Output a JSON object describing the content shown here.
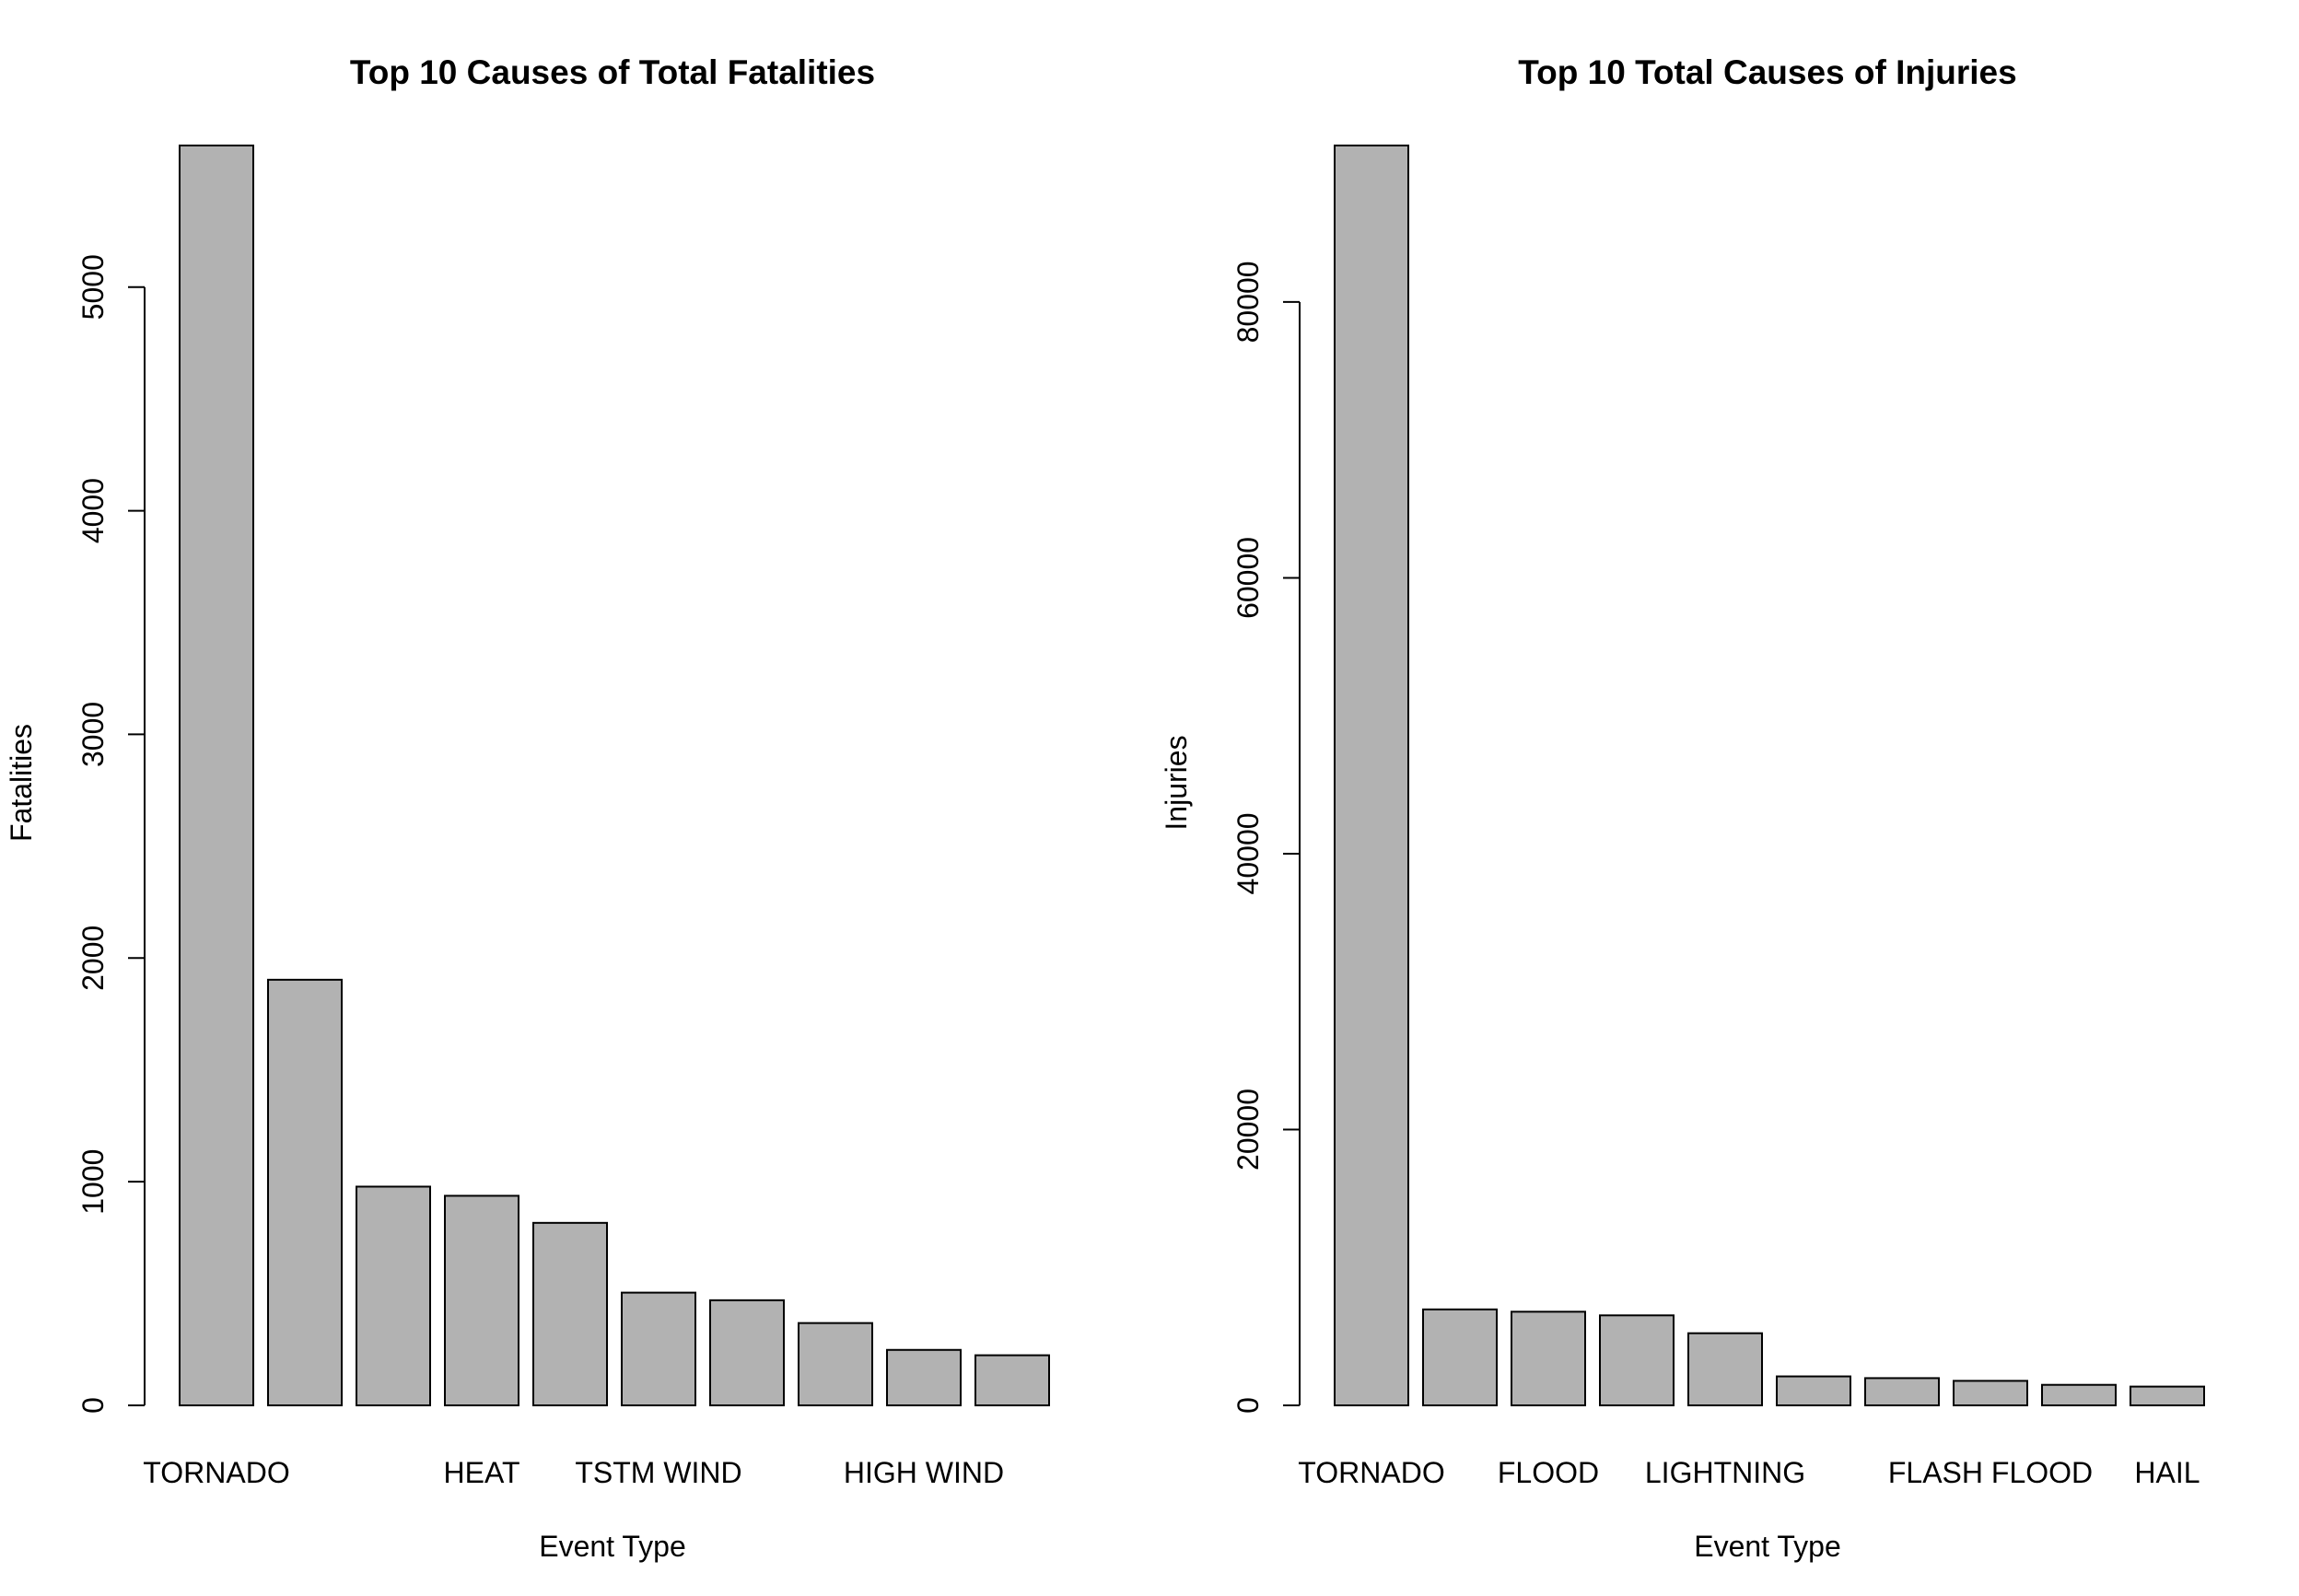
{
  "chart_data": [
    {
      "type": "bar",
      "title": "Top 10 Causes of Total Fatalities",
      "xlabel": "Event Type",
      "ylabel": "Fatalities",
      "categories": [
        "TORNADO",
        "",
        "",
        "HEAT",
        "",
        "TSTM WIND",
        "",
        "",
        "HIGH WIND",
        ""
      ],
      "values": [
        5633,
        1903,
        978,
        937,
        816,
        504,
        470,
        368,
        248,
        224
      ],
      "ylim": [
        0,
        5633
      ],
      "yticks": [
        0,
        1000,
        2000,
        3000,
        4000,
        5000
      ],
      "ytick_labels": [
        "0",
        "1000",
        "2000",
        "3000",
        "4000",
        "5000"
      ],
      "bar_color": "#b2b2b2",
      "grid": false
    },
    {
      "type": "bar",
      "title": "Top 10 Total Causes of Injuries",
      "xlabel": "Event Type",
      "ylabel": "Injuries",
      "categories": [
        "TORNADO",
        "",
        "FLOOD",
        "",
        "LIGHTNING",
        "",
        "",
        "FLASH FLOOD",
        "",
        "HAIL"
      ],
      "values": [
        91346,
        6957,
        6789,
        6525,
        5230,
        2100,
        1975,
        1777,
        1488,
        1361
      ],
      "ylim": [
        0,
        91346
      ],
      "yticks": [
        0,
        20000,
        40000,
        60000,
        80000
      ],
      "ytick_labels": [
        "0",
        "20000",
        "40000",
        "60000",
        "80000"
      ],
      "bar_color": "#b2b2b2",
      "grid": false
    }
  ]
}
